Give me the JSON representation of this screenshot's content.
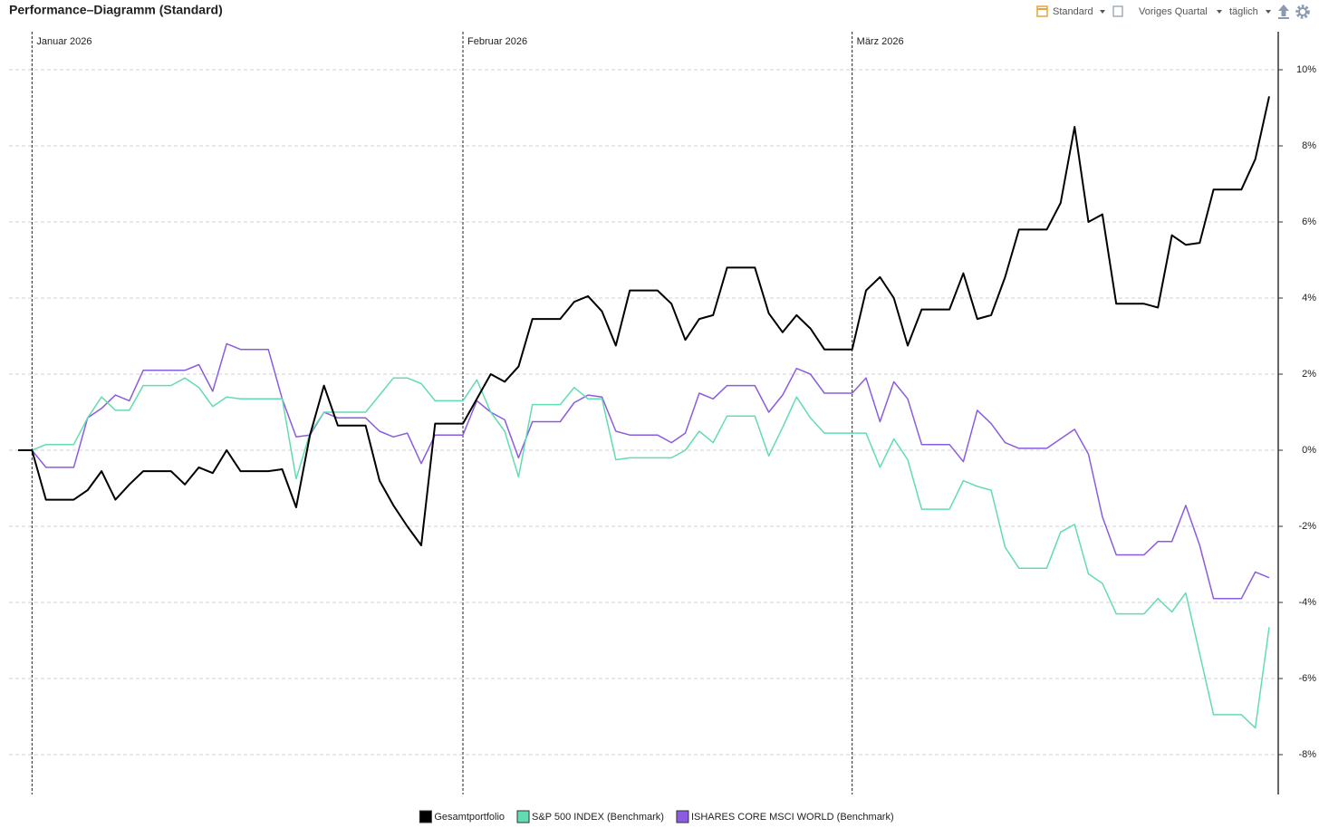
{
  "toolbar": {
    "view": "Standard",
    "period": "Voriges Quartal",
    "interval": "täglich"
  },
  "chart_data": {
    "type": "line",
    "title": "Performance–Diagramm (Standard)",
    "categories": [
      null,
      "Januar 2026",
      null,
      null,
      null,
      null,
      null,
      null,
      null,
      null,
      null,
      null,
      null,
      null,
      null,
      null,
      null,
      null,
      null,
      null,
      null,
      null,
      null,
      null,
      null,
      null,
      null,
      null,
      null,
      null,
      null,
      null,
      "Februar 2026",
      null,
      null,
      null,
      null,
      null,
      null,
      null,
      null,
      null,
      null,
      null,
      null,
      null,
      null,
      null,
      null,
      null,
      null,
      null,
      null,
      null,
      null,
      null,
      null,
      null,
      null,
      null,
      "März 2026",
      null,
      null,
      null,
      null,
      null,
      null,
      null,
      null,
      null,
      null,
      null,
      null,
      null,
      null,
      null,
      null,
      null,
      null,
      null,
      null,
      null,
      null,
      null,
      null,
      null,
      null,
      null,
      null,
      null,
      null
    ],
    "series": [
      {
        "name": "Gesamtportfolio",
        "color": "#000000",
        "values": [
          0,
          0,
          -1.3,
          -1.3,
          -1.3,
          -1.05,
          -0.55,
          -1.3,
          -0.9,
          -0.55,
          -0.55,
          -0.55,
          -0.9,
          -0.45,
          -0.6,
          0,
          -0.55,
          -0.55,
          -0.55,
          -0.5,
          -1.5,
          0.4,
          1.7,
          0.65,
          0.65,
          0.65,
          -0.8,
          -1.45,
          -2.0,
          -2.5,
          0.7,
          0.7,
          0.7,
          1.35,
          2.0,
          1.8,
          2.2,
          3.45,
          3.45,
          3.45,
          3.9,
          4.05,
          3.65,
          2.75,
          4.2,
          4.2,
          4.2,
          3.85,
          2.9,
          3.45,
          3.55,
          4.8,
          4.8,
          4.8,
          3.6,
          3.1,
          3.55,
          3.2,
          2.65,
          2.65,
          2.65,
          4.2,
          4.55,
          4.0,
          2.75,
          3.7,
          3.7,
          3.7,
          4.65,
          3.45,
          3.55,
          4.55,
          5.8,
          5.8,
          5.8,
          6.5,
          8.5,
          6.0,
          6.2,
          3.85,
          3.85,
          3.85,
          3.75,
          5.65,
          5.4,
          5.45,
          6.85,
          6.85,
          6.85,
          7.65,
          9.3
        ]
      },
      {
        "name": "S&P 500 INDEX (Benchmark)",
        "color": "#62dcb0",
        "values": [
          null,
          0,
          0.15,
          0.15,
          0.15,
          0.85,
          1.4,
          1.05,
          1.05,
          1.7,
          1.7,
          1.7,
          1.9,
          1.65,
          1.15,
          1.4,
          1.35,
          1.35,
          1.35,
          1.35,
          -0.75,
          0.45,
          1.0,
          1.0,
          1.0,
          1.0,
          1.45,
          1.9,
          1.9,
          1.75,
          1.3,
          1.3,
          1.3,
          1.85,
          1.0,
          0.5,
          -0.7,
          1.2,
          1.2,
          1.2,
          1.65,
          1.35,
          1.35,
          -0.25,
          -0.2,
          -0.2,
          -0.2,
          -0.2,
          0,
          0.5,
          0.2,
          0.9,
          0.9,
          0.9,
          -0.15,
          0.6,
          1.4,
          0.85,
          0.45,
          0.45,
          0.45,
          0.45,
          -0.45,
          0.3,
          -0.25,
          -1.55,
          -1.55,
          -1.55,
          -0.8,
          -0.95,
          -1.05,
          -2.55,
          -3.1,
          -3.1,
          -3.1,
          -2.15,
          -1.95,
          -3.25,
          -3.5,
          -4.3,
          -4.3,
          -4.3,
          -3.9,
          -4.25,
          -3.75,
          -5.35,
          -6.95,
          -6.95,
          -6.95,
          -7.3,
          -4.65
        ]
      },
      {
        "name": "ISHARES CORE MSCI WORLD (Benchmark)",
        "color": "#8a5ce0",
        "values": [
          null,
          0,
          -0.45,
          -0.45,
          -0.45,
          0.85,
          1.1,
          1.45,
          1.3,
          2.1,
          2.1,
          2.1,
          2.1,
          2.25,
          1.55,
          2.8,
          2.65,
          2.65,
          2.65,
          1.35,
          0.35,
          0.4,
          1.0,
          0.85,
          0.85,
          0.85,
          0.5,
          0.35,
          0.45,
          -0.35,
          0.4,
          0.4,
          0.4,
          1.3,
          1.0,
          0.8,
          -0.2,
          0.75,
          0.75,
          0.75,
          1.25,
          1.45,
          1.4,
          0.5,
          0.4,
          0.4,
          0.4,
          0.2,
          0.45,
          1.5,
          1.35,
          1.7,
          1.7,
          1.7,
          1.0,
          1.45,
          2.15,
          2.0,
          1.5,
          1.5,
          1.5,
          1.9,
          0.75,
          1.8,
          1.35,
          0.15,
          0.15,
          0.15,
          -0.3,
          1.05,
          0.7,
          0.2,
          0.05,
          0.05,
          0.05,
          0.3,
          0.55,
          -0.1,
          -1.75,
          -2.75,
          -2.75,
          -2.75,
          -2.4,
          -2.4,
          -1.45,
          -2.5,
          -3.9,
          -3.9,
          -3.9,
          -3.2,
          -3.35
        ]
      }
    ],
    "ylim": [
      -9,
      11
    ],
    "yticks": [
      {
        "value": -8,
        "label": "-8%"
      },
      {
        "value": -6,
        "label": "-6%"
      },
      {
        "value": -4,
        "label": "-4%"
      },
      {
        "value": -2,
        "label": "-2%"
      },
      {
        "value": 0,
        "label": "0%"
      },
      {
        "value": 2,
        "label": "2%"
      },
      {
        "value": 4,
        "label": "4%"
      },
      {
        "value": 6,
        "label": "6%"
      },
      {
        "value": 8,
        "label": "8%"
      },
      {
        "value": 10,
        "label": "10%"
      }
    ],
    "grid": true,
    "legend": "bottom"
  }
}
